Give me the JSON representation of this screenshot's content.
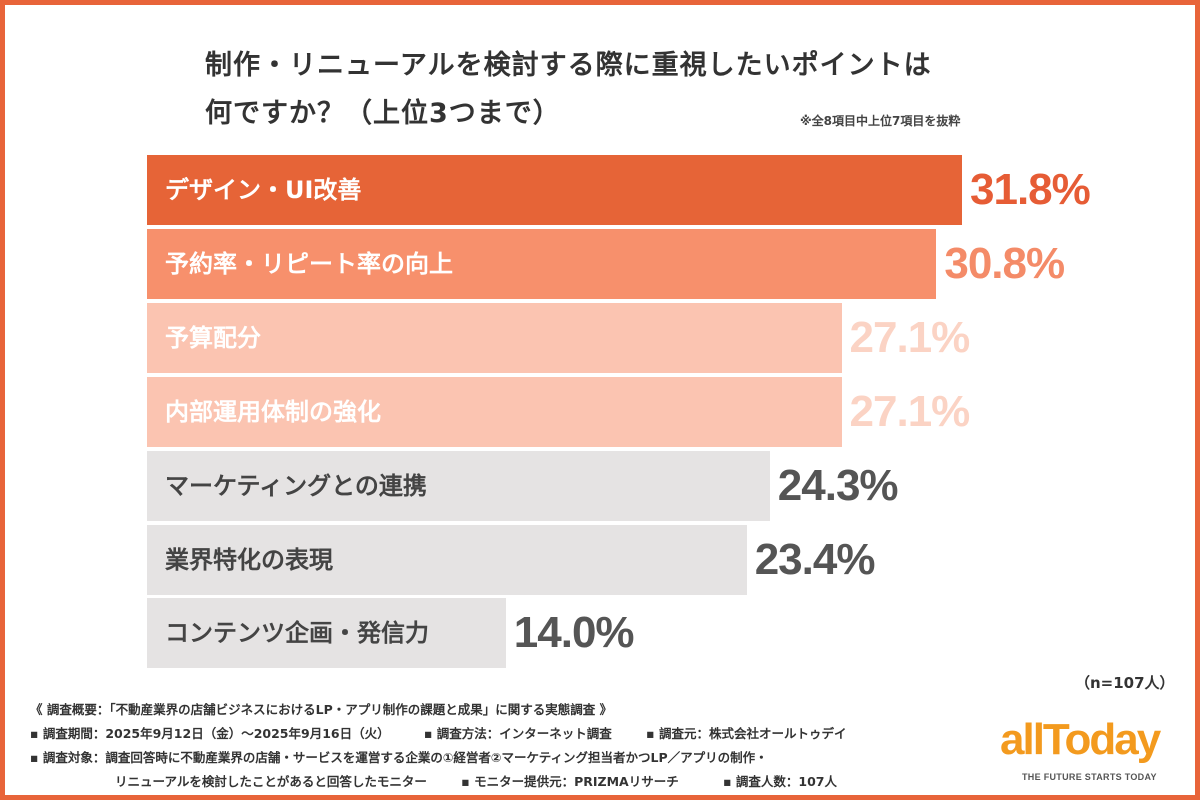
{
  "chart_data": {
    "type": "bar",
    "orientation": "horizontal",
    "title_lines": [
      "制作・リニューアルを検討する際に重視したいポイントは",
      "何ですか？（上位3つまで）"
    ],
    "note": "※全8項目中上位7項目を抜粋",
    "categories": [
      "デザイン・UI改善",
      "予約率・リピート率の向上",
      "予算配分",
      "内部運用体制の強化",
      "マーケティングとの連携",
      "業界特化の表現",
      "コンテンツ企画・発信力"
    ],
    "values": [
      31.8,
      30.8,
      27.1,
      27.1,
      24.3,
      23.4,
      14.0
    ],
    "value_labels": [
      "31.8%",
      "30.8%",
      "27.1%",
      "27.1%",
      "24.3%",
      "23.4%",
      "14.0%"
    ],
    "bar_colors": [
      "#E66437",
      "#F7906C",
      "#FBC4B1",
      "#FBC4B1",
      "#E5E3E3",
      "#E5E3E3",
      "#E5E3E3"
    ],
    "label_colors": [
      "#FFFFFF",
      "#FFFFFF",
      "#FFFFFF",
      "#FFFFFF",
      "#444444",
      "#444444",
      "#444444"
    ],
    "value_colors": [
      "#E65C35",
      "#F48B68",
      "#FBD3C4",
      "#FBD3C4",
      "#555555",
      "#555555",
      "#555555"
    ],
    "sample": "（n=107人）",
    "xlim": [
      0,
      31.8
    ],
    "grid": false
  },
  "footer": {
    "line1": "《 調査概要：「不動産業界の店舗ビジネスにおけるLP・アプリ制作の課題と成果」に関する実態調査 》",
    "line2a": "▪ 調査期間：2025年9月12日（金）～2025年9月16日（火）",
    "line2b": "▪ 調査方法：インターネット調査",
    "line2c": "▪ 調査元：株式会社オールトゥデイ",
    "line3": "▪ 調査対象：調査回答時に不動産業界の店舗・サービスを運営する企業の①経営者②マーケティング担当者かつLP／アプリの制作・",
    "line4a": "リニューアルを検討したことがあると回答したモニター",
    "line4b": "▪ モニター提供元：PRIZMAリサーチ",
    "line4c": "▪ 調査人数：107人"
  },
  "logo": {
    "name": "allToday",
    "tagline": "THE FUTURE STARTS TODAY"
  },
  "accent": "#E8643A"
}
